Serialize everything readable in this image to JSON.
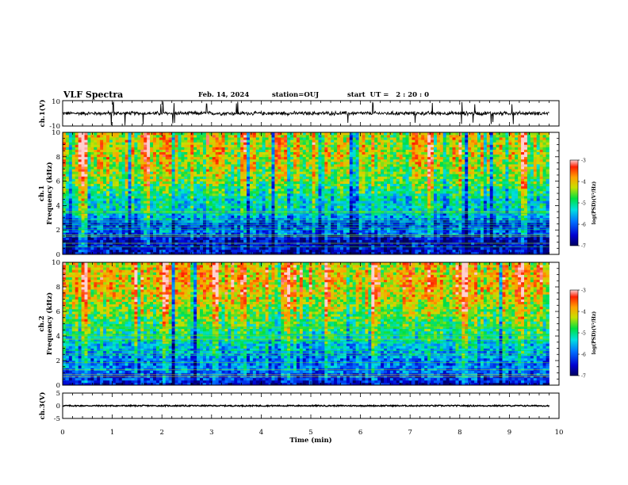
{
  "header": {
    "title": "VLF Spectra",
    "date": "Feb. 14, 2024",
    "station": "station=OUJ",
    "start_ut": "start  UT =   2 : 20 : 0"
  },
  "chart_data": [
    {
      "type": "line",
      "panel": "ch1-waveform",
      "ylabel": "ch.1(V)",
      "ylim": [
        -10,
        10
      ],
      "yticks": [
        10,
        -10
      ],
      "xlim": [
        0,
        10
      ],
      "x_data_extent": [
        0,
        9.8
      ],
      "baseline": 0,
      "noise_amplitude": 1.2,
      "spike_times_min": [
        0.98,
        1.02,
        1.26,
        1.62,
        1.98,
        2.02,
        2.22,
        2.25,
        2.9,
        3.5,
        3.53,
        5.75,
        6.25,
        7.1,
        7.45,
        8.04,
        8.27,
        8.3,
        8.63,
        8.67,
        9.05,
        9.08
      ],
      "spike_amplitude": 9.5
    },
    {
      "type": "heatmap",
      "panel": "ch1-spectrogram",
      "ylabel": "ch.1\nFrequency  (kHz)",
      "ylim": [
        0,
        10
      ],
      "yticks": [
        "0",
        "2",
        "4",
        "6",
        "8",
        "10"
      ],
      "xlim": [
        0,
        10
      ],
      "x_data_extent": [
        0,
        9.8
      ],
      "colorbar": {
        "label": "log(PSD)(V²/Hz)",
        "range": [
          -7,
          -3
        ],
        "ticks": [
          "-3",
          "-4",
          "-5",
          "-6",
          "-7"
        ]
      },
      "band_profile_khz": [
        [
          0,
          0.1
        ],
        [
          0.4,
          0.15
        ],
        [
          0.8,
          0.1
        ],
        [
          1.2,
          0.12
        ],
        [
          1.6,
          0.22
        ],
        [
          2.0,
          0.3
        ],
        [
          2.4,
          0.18
        ],
        [
          2.8,
          0.3
        ],
        [
          3.2,
          0.38
        ],
        [
          3.6,
          0.42
        ],
        [
          4.0,
          0.45
        ],
        [
          4.4,
          0.42
        ],
        [
          5.0,
          0.5
        ],
        [
          6.0,
          0.6
        ],
        [
          7.0,
          0.65
        ],
        [
          8.0,
          0.7
        ],
        [
          9.0,
          0.7
        ],
        [
          10.0,
          0.68
        ]
      ],
      "enhanced_times_min": [
        0.38,
        0.44,
        1.68,
        2.12,
        3.62,
        4.5,
        5.05,
        6.2,
        7.4,
        8.05,
        9.3
      ]
    },
    {
      "type": "heatmap",
      "panel": "ch2-spectrogram",
      "ylabel": "ch.2\nFrequency  (kHz)",
      "ylim": [
        0,
        10
      ],
      "yticks": [
        "0",
        "2",
        "4",
        "6",
        "8",
        "10"
      ],
      "xlim": [
        0,
        10
      ],
      "x_data_extent": [
        0,
        9.8
      ],
      "colorbar": {
        "label": "log(PSD)(V²/Hz)",
        "range": [
          -7,
          -3
        ],
        "ticks": [
          "-3",
          "-4",
          "-5",
          "-6",
          "-7"
        ]
      },
      "band_profile_khz": [
        [
          0,
          0.1
        ],
        [
          0.5,
          0.2
        ],
        [
          1.0,
          0.25
        ],
        [
          1.5,
          0.3
        ],
        [
          2.0,
          0.28
        ],
        [
          2.5,
          0.35
        ],
        [
          3.0,
          0.38
        ],
        [
          3.5,
          0.42
        ],
        [
          4.0,
          0.48
        ],
        [
          5.0,
          0.55
        ],
        [
          6.0,
          0.62
        ],
        [
          7.0,
          0.7
        ],
        [
          8.0,
          0.76
        ],
        [
          9.0,
          0.76
        ],
        [
          10.0,
          0.72
        ]
      ],
      "enhanced_times_min": [
        0.42,
        1.5,
        2.05,
        3.1,
        3.65,
        4.55,
        5.35,
        6.3,
        7.35,
        8.1,
        9.25
      ]
    },
    {
      "type": "line",
      "panel": "ch3-waveform",
      "ylabel": "ch.3(V)",
      "ylim": [
        -5,
        5
      ],
      "yticks": [
        5,
        0,
        -5
      ],
      "xlim": [
        0,
        10
      ],
      "x_data_extent": [
        0,
        9.8
      ],
      "baseline": 0,
      "noise_amplitude": 0.25,
      "xlabel": "Time  (min)",
      "xticks": [
        "0",
        "1",
        "2",
        "3",
        "4",
        "5",
        "6",
        "7",
        "8",
        "9",
        "10"
      ]
    }
  ]
}
